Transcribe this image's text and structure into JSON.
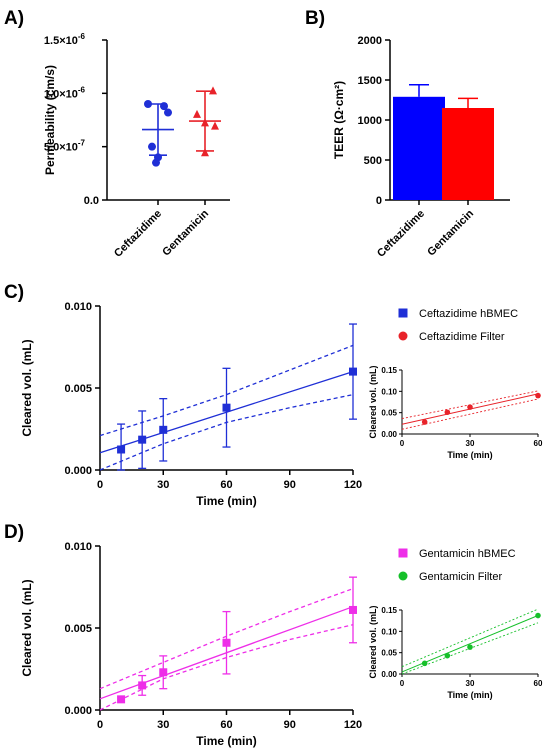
{
  "chart_data": [
    {
      "panel": "A)",
      "type": "scatter",
      "ylabel": "Permeability (cm/s)",
      "ylim": [
        0,
        1.5e-06
      ],
      "y_ticks": [
        0,
        5e-07,
        1e-06,
        1.5e-06
      ],
      "y_tick_labels": [
        "0.0",
        "5.0×10",
        "1.0×10",
        "1.5×10"
      ],
      "y_tick_exponents": [
        "",
        "-7",
        "-6",
        "-6"
      ],
      "categories": [
        "Ceftazidime",
        "Gentamicin"
      ],
      "series": [
        {
          "name": "Ceftazidime",
          "color": "#1f2fd6",
          "marker": "circle",
          "values": [
            9e-07,
            8.8e-07,
            8.2e-07,
            5e-07,
            4e-07,
            3.5e-07
          ],
          "mean": 6.6e-07,
          "error": 2.4e-07
        },
        {
          "name": "Gentamicin",
          "color": "#e8232a",
          "marker": "triangle",
          "values": [
            1.02e-06,
            8e-07,
            7.2e-07,
            6.9e-07,
            4.4e-07
          ],
          "mean": 7.4e-07,
          "error": 2.8e-07
        }
      ]
    },
    {
      "panel": "B)",
      "type": "bar",
      "ylabel": "TEER (Ω·cm²)",
      "ylim": [
        0,
        2000
      ],
      "y_ticks": [
        0,
        500,
        1000,
        1500,
        2000
      ],
      "categories": [
        "Ceftazidime",
        "Gentamicin"
      ],
      "values": [
        1290,
        1150
      ],
      "errors": [
        150,
        120
      ],
      "colors": [
        "#0000ff",
        "#ff0000"
      ]
    },
    {
      "panel": "C)",
      "type": "scatter",
      "xlabel": "Time (min)",
      "ylabel": "Cleared vol.  (mL)",
      "xlim": [
        0,
        120
      ],
      "ylim": [
        0,
        0.01
      ],
      "x_ticks": [
        0,
        30,
        60,
        90,
        120
      ],
      "y_ticks": [
        0,
        0.005,
        0.01
      ],
      "y_tick_labels": [
        "0.000",
        "0.005",
        "0.010"
      ],
      "series": [
        {
          "name": "Ceftazidime hBMEC",
          "color": "#1f2fd6",
          "marker": "square",
          "x": [
            10,
            20,
            30,
            60,
            120
          ],
          "y": [
            0.00125,
            0.00185,
            0.00245,
            0.0038,
            0.006
          ],
          "error": [
            0.00155,
            0.00175,
            0.0019,
            0.0024,
            0.0029
          ],
          "fit": [
            [
              0,
              0.00105
            ],
            [
              120,
              0.006
            ]
          ],
          "band_upper": [
            [
              0,
              0.0021
            ],
            [
              30,
              0.0033
            ],
            [
              60,
              0.0046
            ],
            [
              90,
              0.0061
            ],
            [
              120,
              0.0076
            ]
          ],
          "band_lower": [
            [
              0,
              0.0
            ],
            [
              30,
              0.0016
            ],
            [
              60,
              0.0029
            ],
            [
              90,
              0.0038
            ],
            [
              120,
              0.0046
            ]
          ]
        }
      ],
      "legend": [
        "Ceftazidime hBMEC",
        "Ceftazidime Filter"
      ],
      "inset": {
        "xlabel": "Time (min)",
        "ylabel": "Cleared vol.  (mL)",
        "xlim": [
          0,
          60
        ],
        "ylim": [
          0,
          0.15
        ],
        "x_ticks": [
          0,
          30,
          60
        ],
        "y_ticks": [
          0,
          0.05,
          0.1,
          0.15
        ],
        "y_tick_labels": [
          "0.00",
          "0.05",
          "0.10",
          "0.15"
        ],
        "series": [
          {
            "name": "Ceftazidime Filter",
            "color": "#e8232a",
            "marker": "circle",
            "x": [
              10,
              20,
              30,
              60
            ],
            "y": [
              0.028,
              0.051,
              0.063,
              0.09
            ],
            "fit": [
              [
                0,
                0.023
              ],
              [
                60,
                0.094
              ]
            ],
            "band_upper": [
              [
                0,
                0.036
              ],
              [
                60,
                0.101
              ]
            ],
            "band_lower": [
              [
                0,
                0.011
              ],
              [
                60,
                0.082
              ]
            ]
          }
        ]
      }
    },
    {
      "panel": "D)",
      "type": "scatter",
      "xlabel": "Time (min)",
      "ylabel": "Cleared vol.  (mL)",
      "xlim": [
        0,
        120
      ],
      "ylim": [
        0,
        0.01
      ],
      "x_ticks": [
        0,
        30,
        60,
        90,
        120
      ],
      "y_ticks": [
        0,
        0.005,
        0.01
      ],
      "y_tick_labels": [
        "0.000",
        "0.005",
        "0.010"
      ],
      "series": [
        {
          "name": "Gentamicin hBMEC",
          "color": "#ee2ee8",
          "marker": "square",
          "x": [
            10,
            20,
            30,
            60,
            120
          ],
          "y": [
            0.00065,
            0.0015,
            0.0023,
            0.0041,
            0.0061
          ],
          "error": [
            0.0,
            0.0006,
            0.001,
            0.0019,
            0.002
          ],
          "fit": [
            [
              0,
              0.00068
            ],
            [
              120,
              0.0063
            ]
          ],
          "band_upper": [
            [
              0,
              0.0013
            ],
            [
              30,
              0.0029
            ],
            [
              60,
              0.0045
            ],
            [
              90,
              0.006
            ],
            [
              120,
              0.0074
            ]
          ],
          "band_lower": [
            [
              0,
              0.0
            ],
            [
              30,
              0.0019
            ],
            [
              60,
              0.0032
            ],
            [
              90,
              0.0043
            ],
            [
              120,
              0.0052
            ]
          ]
        }
      ],
      "legend": [
        "Gentamicin hBMEC",
        "Gentamicin Filter"
      ],
      "inset": {
        "xlabel": "Time (min)",
        "ylabel": "Cleared vol.  (mL)",
        "xlim": [
          0,
          60
        ],
        "ylim": [
          0,
          0.15
        ],
        "x_ticks": [
          0,
          30,
          60
        ],
        "y_ticks": [
          0,
          0.05,
          0.1,
          0.15
        ],
        "y_tick_labels": [
          "0.00",
          "0.05",
          "0.10",
          "0.15"
        ],
        "series": [
          {
            "name": "Gentamicin Filter",
            "color": "#16c02a",
            "marker": "circle",
            "x": [
              10,
              20,
              30,
              60
            ],
            "y": [
              0.025,
              0.043,
              0.063,
              0.137
            ],
            "fit": [
              [
                0,
                0.005
              ],
              [
                60,
                0.137
              ]
            ],
            "band_upper": [
              [
                0,
                0.017
              ],
              [
                60,
                0.152
              ]
            ],
            "band_lower": [
              [
                0,
                -0.005
              ],
              [
                60,
                0.12
              ]
            ]
          }
        ]
      }
    }
  ]
}
